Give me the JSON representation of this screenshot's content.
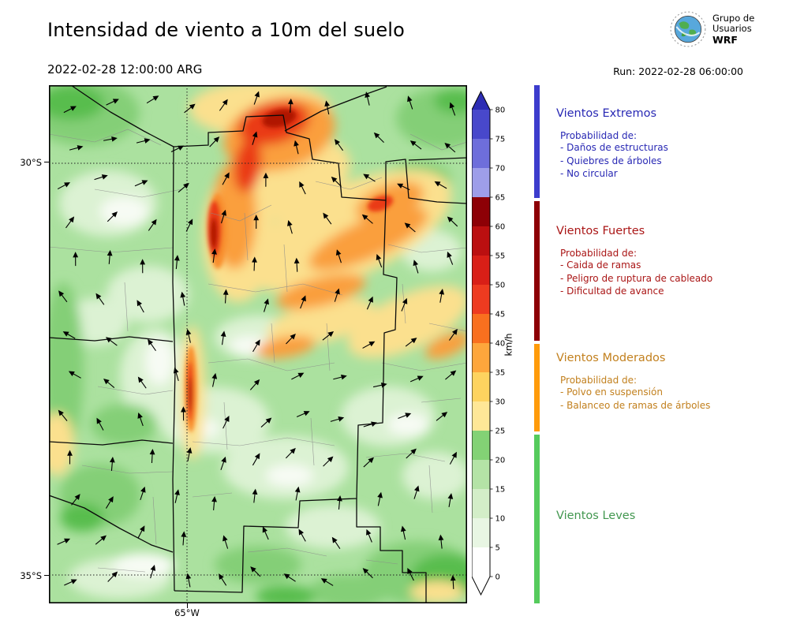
{
  "header": {
    "title": "Intensidad de viento a 10m del suelo",
    "datetime": "2022-02-28 12:00:00 ARG",
    "run_label": "Run: 2022-02-28 06:00:00",
    "logo_text": [
      "Grupo de",
      "Usuarios",
      "WRF"
    ]
  },
  "map": {
    "lat_labels": [
      "30°S",
      "35°S"
    ],
    "lon_label": "65°W"
  },
  "colorbar": {
    "unit": "km/h",
    "ticks": [
      "80",
      "75",
      "70",
      "65",
      "60",
      "55",
      "50",
      "45",
      "40",
      "35",
      "30",
      "25",
      "20",
      "15",
      "10",
      "5",
      "0"
    ],
    "segment_colors_bottom_to_top": [
      "#ffffff",
      "#e8f6e3",
      "#d3eec8",
      "#b4e3a6",
      "#83d275",
      "#fee797",
      "#fdd35f",
      "#fda63c",
      "#f9701f",
      "#ee3b20",
      "#d91f17",
      "#bb0f10",
      "#8d0006",
      "#9e9ee9",
      "#6e6edb",
      "#4848cb"
    ],
    "under_color": "#ffffff",
    "over_color": "#2d2db4"
  },
  "legend": {
    "sections": [
      {
        "title": "Vientos Extremos",
        "text_color": "#2828b4",
        "bar_color": "#3c3ccd",
        "subtitle": "Probabilidad de:",
        "items": [
          "- Daños de estructuras",
          "- Quiebres de árboles",
          "- No circular"
        ]
      },
      {
        "title": "Vientos Fuertes",
        "text_color": "#aa1616",
        "bar_color": "#8d0006",
        "subtitle": "Probabilidad de:",
        "items": [
          "- Caida de ramas",
          "- Peligro de ruptura de cableado",
          "- Dificultad de avance"
        ]
      },
      {
        "title": "Vientos Moderados",
        "text_color": "#c2801e",
        "bar_color": "#ff9b0a",
        "subtitle": "Probabilidad de:",
        "items": [
          "- Polvo en suspensión",
          "- Balanceo de ramas de árboles"
        ]
      },
      {
        "title": "Vientos Leves",
        "text_color": "#42974f",
        "bar_color": "#55cb5c",
        "subtitle": "",
        "items": []
      }
    ]
  }
}
